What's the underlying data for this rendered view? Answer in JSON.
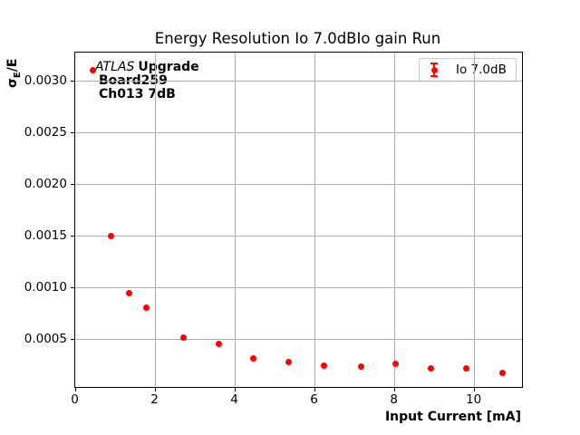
{
  "figure": {
    "background": "#ffffff"
  },
  "chart_data": {
    "type": "scatter",
    "title": "Energy Resolution Io 7.0dBIo gain Run",
    "xlabel": "Input Current [mA]",
    "ylabel": "σE/E",
    "xlim": [
      0,
      11.2
    ],
    "ylim": [
      4e-05,
      0.00328
    ],
    "xticks": [
      0,
      2,
      4,
      6,
      8,
      10
    ],
    "yticks": [
      0.0005,
      0.001,
      0.0015,
      0.002,
      0.0025,
      0.003
    ],
    "ytick_labels": [
      "0.0005",
      "0.0010",
      "0.0015",
      "0.0020",
      "0.0025",
      "0.0030"
    ],
    "grid": true,
    "legend_position": "upper right",
    "series": [
      {
        "name": "Io 7.0dB",
        "marker": "circle-with-errorbars",
        "color": "#ff0000",
        "x": [
          0.45,
          0.9,
          1.36,
          1.78,
          2.71,
          3.59,
          4.47,
          5.36,
          6.24,
          7.17,
          8.03,
          8.92,
          9.81,
          10.71
        ],
        "y": [
          0.00311,
          0.0015,
          0.00095,
          0.00081,
          0.00052,
          0.00046,
          0.00032,
          0.00028,
          0.00025,
          0.00024,
          0.00026,
          0.00022,
          0.00022,
          0.000175
        ]
      }
    ]
  },
  "ylabel_parts": {
    "sigma": "σ",
    "sub": "E",
    "rest": "/E"
  },
  "annotation": {
    "line1_italic": "ATLAS",
    "line1_bold": "Upgrade",
    "line2": "Board259",
    "line3": "Ch013 7dB"
  },
  "legend": {
    "label": "Io 7.0dB"
  },
  "colors": {
    "series": "#ff0000",
    "grid": "#b0b0b0",
    "spine": "#000000",
    "text": "#000000",
    "legend_border": "#cccccc"
  }
}
